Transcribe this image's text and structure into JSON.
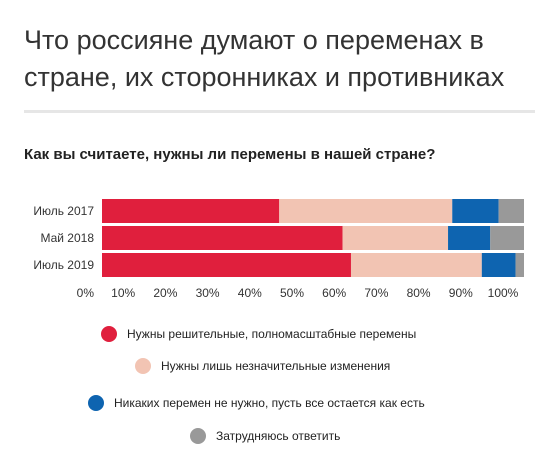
{
  "title": "Что россияне думают о переменах в стране, их сторонниках и противниках",
  "chart_data": {
    "type": "bar",
    "orientation": "horizontal",
    "stacked": true,
    "title": "Как вы считаете, нужны ли перемены в нашей стране?",
    "categories": [
      "Июль 2017",
      "Май 2018",
      "Июль 2019"
    ],
    "series": [
      {
        "name": "Нужны решительные, полномасштабные перемены",
        "color": "#e01f3d",
        "values": [
          42,
          57,
          59
        ]
      },
      {
        "name": "Нужны лишь незначительные изменения",
        "color": "#f2c4b3",
        "values": [
          41,
          25,
          31
        ]
      },
      {
        "name": "Никаких перемен не нужно, пусть все остается как есть",
        "color": "#0e64b0",
        "values": [
          11,
          10,
          8
        ]
      },
      {
        "name": "Затрудняюсь ответить",
        "color": "#999999",
        "values": [
          6,
          8,
          2
        ]
      }
    ],
    "xlim": [
      0,
      100
    ],
    "xticks": [
      "0%",
      "10%",
      "20%",
      "30%",
      "40%",
      "50%",
      "60%",
      "70%",
      "80%",
      "90%",
      "100%"
    ],
    "grid": false,
    "legend_position": "bottom"
  }
}
